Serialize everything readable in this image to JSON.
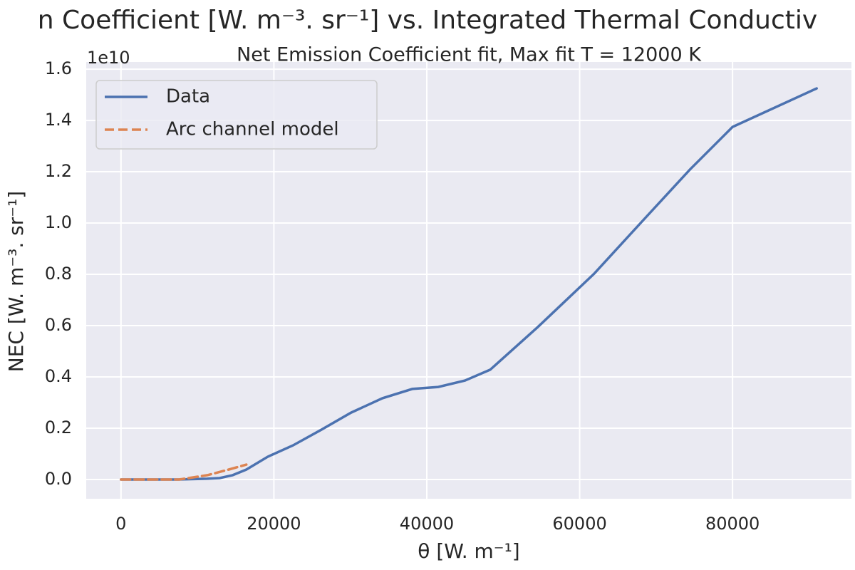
{
  "chart_data": {
    "type": "line",
    "title": "n Coefficient [W. m⁻³. sr⁻¹] vs. Integrated Thermal Conductiv",
    "subtitle": "Net Emission Coefficient fit, Max fit T = 12000 K",
    "x_label": "θ [W. m⁻¹]",
    "y_label": "NEC [W. m⁻³. sr⁻¹]",
    "y_offset_label": "1e10",
    "grid": true,
    "legend_position": "upper-left",
    "xlim": [
      -4550,
      95550
    ],
    "ylim": [
      -750000000,
      16280000000
    ],
    "xticks": [
      0,
      20000,
      40000,
      60000,
      80000
    ],
    "yticks": [
      {
        "value": 0,
        "label": "0.0"
      },
      {
        "value": 2000000000,
        "label": "0.2"
      },
      {
        "value": 4000000000,
        "label": "0.4"
      },
      {
        "value": 6000000000,
        "label": "0.6"
      },
      {
        "value": 8000000000,
        "label": "0.8"
      },
      {
        "value": 10000000000,
        "label": "1.0"
      },
      {
        "value": 12000000000,
        "label": "1.2"
      },
      {
        "value": 14000000000,
        "label": "1.4"
      },
      {
        "value": 16000000000,
        "label": "1.6"
      }
    ],
    "series": [
      {
        "name": "Data",
        "color": "#4c72b0",
        "dash": "solid",
        "x": [
          0,
          7600,
          11300,
          12900,
          14600,
          16400,
          19200,
          22500,
          26200,
          30100,
          34200,
          38100,
          41500,
          45000,
          48300,
          54500,
          61900,
          68400,
          74400,
          80000,
          91000
        ],
        "values": [
          0,
          0,
          30000000,
          56000000,
          170000000,
          390000000,
          890000000,
          1330000000,
          1940000000,
          2610000000,
          3170000000,
          3530000000,
          3610000000,
          3860000000,
          4280000000,
          5940000000,
          8030000000,
          10140000000,
          12080000000,
          13750000000,
          15250000000
        ]
      },
      {
        "name": "Arc channel model",
        "color": "#dd8452",
        "dash": "dashed",
        "x": [
          0,
          7600,
          11300,
          14100,
          16400
        ],
        "values": [
          0,
          0,
          170000000,
          390000000,
          580000000
        ]
      }
    ]
  }
}
